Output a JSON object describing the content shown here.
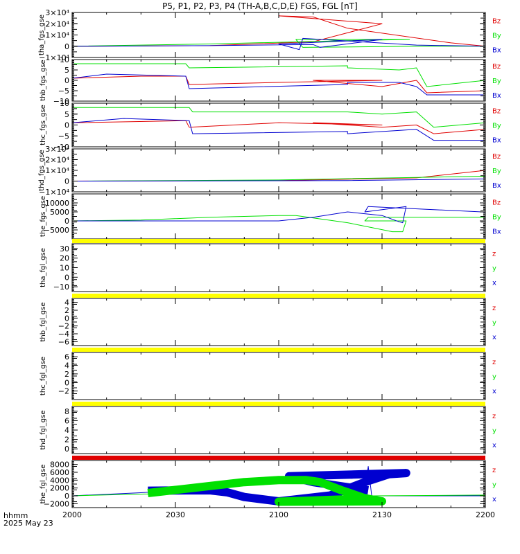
{
  "title": "P5, P1, P2, P3, P4 (TH-A,B,C,D,E) FGS, FGL [nT]",
  "footer": {
    "label1": "hhmm",
    "label2": "2025 May 23"
  },
  "colors": {
    "red": "#e00000",
    "green": "#00e000",
    "blue": "#0000d0",
    "yellow": "#ffff00",
    "black": "#000000"
  },
  "chart_data": [
    {
      "type": "line",
      "ylabel": "tha_fgs_gse",
      "ylim": [
        -10000,
        30000
      ],
      "yticks": [
        "3×10⁴",
        "2×10⁴",
        "1×10⁴",
        "0",
        "−1×10⁴"
      ],
      "ytick_values": [
        30000,
        20000,
        10000,
        0,
        -10000
      ],
      "series": [
        {
          "name": "Bz",
          "color": "red",
          "x": [
            2000,
            2040,
            2070,
            2090,
            2100,
            2110,
            2120,
            2150,
            2200
          ],
          "y": [
            0,
            500,
            4000,
            20000,
            27000,
            26000,
            16000,
            3000,
            0
          ]
        },
        {
          "name": "By",
          "color": "green",
          "x": [
            2000,
            2040,
            2080,
            2098,
            2105,
            2107,
            2140,
            2200
          ],
          "y": [
            0,
            2000,
            5000,
            6000,
            6000,
            -1000,
            0,
            0
          ]
        },
        {
          "name": "Bx",
          "color": "blue",
          "x": [
            2000,
            2040,
            2070,
            2072,
            2090,
            2100,
            2106,
            2107,
            2140,
            2200
          ],
          "y": [
            0,
            500,
            1500,
            -1000,
            6000,
            2000,
            -3000,
            7000,
            1000,
            0
          ]
        }
      ]
    },
    {
      "type": "line",
      "ylabel": "thb_fgs_gse",
      "ylim": [
        -10,
        10
      ],
      "yticks": [
        "10",
        "5",
        "0",
        "−5",
        "−10"
      ],
      "ytick_values": [
        10,
        5,
        0,
        -5,
        -10
      ],
      "series": [
        {
          "name": "Bz",
          "color": "red",
          "x": [
            2000,
            2020,
            2033,
            2034,
            2060,
            2090,
            2110,
            2130,
            2140,
            2143,
            2160,
            2200
          ],
          "y": [
            1,
            2,
            2,
            -2,
            -1,
            0,
            0,
            -3,
            0,
            -6,
            -5,
            -4
          ]
        },
        {
          "name": "By",
          "color": "green",
          "x": [
            2000,
            2033,
            2034,
            2080,
            2120,
            2135,
            2140,
            2143,
            2200
          ],
          "y": [
            8,
            8,
            6,
            7,
            6,
            5,
            6,
            -3,
            0
          ]
        },
        {
          "name": "Bx",
          "color": "blue",
          "x": [
            2000,
            2010,
            2033,
            2034,
            2080,
            2120,
            2135,
            2140,
            2143,
            2200
          ],
          "y": [
            1,
            3,
            2,
            -4,
            -2,
            -1,
            -1,
            -3,
            -7,
            -7
          ]
        }
      ]
    },
    {
      "type": "line",
      "ylabel": "thc_fgs_gse",
      "ylim": [
        -10,
        10
      ],
      "yticks": [
        "10",
        "5",
        "0",
        "−5",
        "−10"
      ],
      "ytick_values": [
        10,
        5,
        0,
        -5,
        -10
      ],
      "series": [
        {
          "name": "Bz",
          "color": "red",
          "x": [
            2000,
            2033,
            2034,
            2060,
            2090,
            2110,
            2130,
            2140,
            2145,
            2200
          ],
          "y": [
            1,
            2,
            -1,
            1,
            0,
            1,
            -1,
            0,
            -4,
            -2
          ]
        },
        {
          "name": "By",
          "color": "green",
          "x": [
            2000,
            2034,
            2035,
            2080,
            2130,
            2140,
            2145,
            2200
          ],
          "y": [
            8,
            8,
            6,
            6,
            5,
            6,
            -1,
            1
          ]
        },
        {
          "name": "Bx",
          "color": "blue",
          "x": [
            2000,
            2015,
            2034,
            2035,
            2080,
            2120,
            2140,
            2145,
            2200
          ],
          "y": [
            1,
            3,
            2,
            -4,
            -3,
            -4,
            -2,
            -7,
            -7
          ]
        }
      ]
    },
    {
      "type": "line",
      "ylabel": "thd_fgs_gse",
      "ylim": [
        -10000,
        30000
      ],
      "yticks": [
        "3×10⁴",
        "2×10⁴",
        "1×10⁴",
        "0",
        "−1×10⁴"
      ],
      "ytick_values": [
        30000,
        20000,
        10000,
        0,
        -10000
      ],
      "series": [
        {
          "name": "Bz",
          "color": "red",
          "x": [
            2000,
            2100,
            2140,
            2160,
            2175,
            2185,
            2195,
            2200
          ],
          "y": [
            0,
            500,
            3000,
            10000,
            22000,
            26000,
            23000,
            20000
          ]
        },
        {
          "name": "By",
          "color": "green",
          "x": [
            2000,
            2100,
            2150,
            2170,
            2190,
            2197,
            2198,
            2200
          ],
          "y": [
            0,
            1000,
            4000,
            5000,
            -3000,
            -4000,
            5000,
            4000
          ]
        },
        {
          "name": "Bx",
          "color": "blue",
          "x": [
            2000,
            2120,
            2160,
            2185,
            2195,
            2200
          ],
          "y": [
            0,
            500,
            2000,
            4000,
            -1000,
            0
          ]
        }
      ]
    },
    {
      "type": "line",
      "ylabel": "the_fgs_gse",
      "ylim": [
        -10000,
        15000
      ],
      "yticks": [
        "10000",
        "5000",
        "0",
        "−5000"
      ],
      "ytick_values": [
        10000,
        5000,
        0,
        -5000
      ],
      "series": [
        {
          "name": "By",
          "color": "green",
          "x": [
            2000,
            2020,
            2040,
            2060,
            2065,
            2080,
            2093,
            2096,
            2097,
            2125,
            2126,
            2170,
            2175,
            2200
          ],
          "y": [
            0,
            500,
            2000,
            3000,
            3000,
            -1000,
            -6000,
            -6000,
            0,
            0,
            2000,
            2000,
            2000,
            2000
          ]
        },
        {
          "name": "Bx",
          "color": "blue",
          "x": [
            2000,
            2040,
            2060,
            2070,
            2080,
            2090,
            2095,
            2096,
            2097,
            2125,
            2126,
            2170,
            2175,
            2200
          ],
          "y": [
            0,
            0,
            0,
            2000,
            5000,
            3000,
            -500,
            -1000,
            8000,
            5000,
            8000,
            4000,
            -1000,
            -1000
          ]
        }
      ]
    },
    {
      "type": "line",
      "ylabel": "tha_fgl_gse",
      "ylim": [
        -15,
        35
      ],
      "yticks": [
        "30",
        "20",
        "10",
        "0",
        "−10"
      ],
      "ytick_values": [
        30,
        20,
        10,
        0,
        -10
      ],
      "legend": [
        "z",
        "y",
        "x"
      ],
      "status_bar": "yellow",
      "series": []
    },
    {
      "type": "line",
      "ylabel": "thb_fgl_gse",
      "ylim": [
        -7,
        5
      ],
      "yticks": [
        "4",
        "2",
        "0",
        "−2",
        "−4",
        "−6"
      ],
      "ytick_values": [
        4,
        2,
        0,
        -2,
        -4,
        -6
      ],
      "legend": [
        "z",
        "y",
        "x"
      ],
      "status_bar": "yellow",
      "series": []
    },
    {
      "type": "line",
      "ylabel": "thc_fgl_gse",
      "ylim": [
        -4,
        7
      ],
      "yticks": [
        "6",
        "4",
        "2",
        "0",
        "−2"
      ],
      "ytick_values": [
        6,
        4,
        2,
        0,
        -2
      ],
      "legend": [
        "z",
        "y",
        "x"
      ],
      "status_bar": "yellow",
      "series": []
    },
    {
      "type": "line",
      "ylabel": "thd_fgl_gse",
      "ylim": [
        -1,
        9
      ],
      "yticks": [
        "8",
        "6",
        "4",
        "2",
        "0"
      ],
      "ytick_values": [
        8,
        6,
        4,
        2,
        0
      ],
      "legend": [
        "z",
        "y",
        "x"
      ],
      "status_bar": "yellow",
      "series": []
    },
    {
      "type": "line",
      "ylabel": "the_fgl_gse",
      "ylim": [
        -3000,
        9000
      ],
      "yticks": [
        "8000",
        "6000",
        "4000",
        "2000",
        "0",
        "−2000"
      ],
      "ytick_values": [
        8000,
        6000,
        4000,
        2000,
        0,
        -2000
      ],
      "legend": [
        "z",
        "y",
        "x"
      ],
      "status_bar": "red",
      "xticks": [
        "2000",
        "2030",
        "2100",
        "2130",
        "2200"
      ],
      "xtick_values": [
        2000,
        2030,
        2100,
        2130,
        2200
      ],
      "series": [
        {
          "name": "x",
          "color": "blue",
          "width": 1,
          "x": [
            2000,
            2020,
            2033,
            2040,
            2045,
            2050,
            2060,
            2075,
            2085,
            2092,
            2097,
            2103,
            2110,
            2120,
            2125,
            2126,
            2127,
            2160,
            2200
          ],
          "y": [
            0,
            800,
            1500,
            1500,
            1000,
            -300,
            -1500,
            0,
            3500,
            5500,
            5800,
            5000,
            3500,
            2000,
            1200,
            7500,
            0,
            0,
            0
          ]
        },
        {
          "name": "x",
          "color": "blue",
          "width": 12,
          "x": [
            2022,
            2033,
            2040,
            2045,
            2050,
            2060,
            2075,
            2085,
            2092,
            2097,
            2103,
            2110,
            2120,
            2126
          ],
          "y": [
            1300,
            1400,
            1400,
            900,
            -300,
            -1400,
            100,
            3500,
            5500,
            5800,
            5000,
            3500,
            2200,
            1400
          ]
        },
        {
          "name": "y",
          "color": "green",
          "width": 1,
          "x": [
            2000,
            2022,
            2040,
            2050,
            2065,
            2072,
            2078,
            2090,
            2100,
            2125,
            2127,
            2160,
            2200
          ],
          "y": [
            0,
            500,
            2000,
            3500,
            4000,
            3500,
            1000,
            -1500,
            -1500,
            -500,
            0,
            200,
            0
          ]
        },
        {
          "name": "y",
          "color": "green",
          "width": 12,
          "x": [
            2022,
            2030,
            2040,
            2050,
            2060,
            2068,
            2072,
            2078,
            2085,
            2090,
            2100,
            2110,
            2126
          ],
          "y": [
            700,
            1500,
            2500,
            3500,
            4000,
            4000,
            3500,
            1500,
            -600,
            -1400,
            -1500,
            -1200,
            -700
          ]
        }
      ]
    }
  ]
}
